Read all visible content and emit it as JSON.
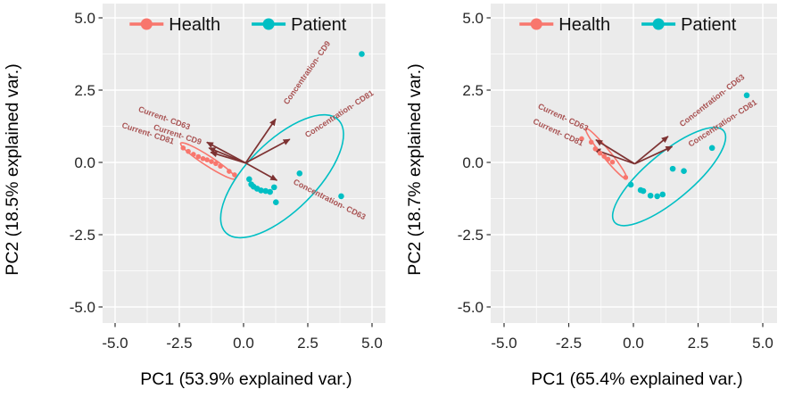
{
  "figure": {
    "background": "#ffffff"
  },
  "style": {
    "panel_bg": "#EBEBEB",
    "grid_color": "#FFFFFF",
    "tick_color": "#333333",
    "arrow_color": "#7d3232",
    "loading_label_color": "#a85252",
    "health_color": "#F8766D",
    "patient_color": "#00BFC4"
  },
  "legend": {
    "entries": [
      {
        "label": "Health",
        "color": "#F8766D"
      },
      {
        "label": "Patient",
        "color": "#00BFC4"
      }
    ]
  },
  "chart_data": [
    {
      "type": "scatter",
      "subtype": "pca-biplot",
      "xlabel": "PC1 (53.9% explained var.)",
      "ylabel": "PC2 (18.5% explained var.)",
      "xlim": [
        -5.5,
        5.5
      ],
      "ylim": [
        -5.5,
        5.5
      ],
      "xticks": [
        -5.0,
        -2.5,
        0.0,
        2.5,
        5.0
      ],
      "yticks": [
        -5.0,
        -2.5,
        0.0,
        2.5,
        5.0
      ],
      "tick_labels": [
        "-5.0",
        "-2.5",
        "0.0",
        "2.5",
        "5.0"
      ],
      "minor_ticks": [
        -3.75,
        -1.25,
        1.25,
        3.75
      ],
      "grid": {
        "major": true,
        "minor": true
      },
      "legend_position": "top-inside",
      "origin": [
        0.08,
        -0.02
      ],
      "series": [
        {
          "name": "Health",
          "color": "#F8766D",
          "points": [
            [
              -2.35,
              0.5
            ],
            [
              -2.15,
              0.38
            ],
            [
              -1.95,
              0.28
            ],
            [
              -1.76,
              0.2
            ],
            [
              -1.58,
              0.13
            ],
            [
              -1.42,
              0.09
            ],
            [
              -1.25,
              0.03
            ],
            [
              -1.08,
              -0.04
            ],
            [
              -0.9,
              -0.13
            ],
            [
              -0.56,
              -0.31
            ],
            [
              -0.35,
              -0.43
            ]
          ]
        },
        {
          "name": "Patient",
          "color": "#00BFC4",
          "points": [
            [
              0.22,
              -0.58
            ],
            [
              0.3,
              -0.76
            ],
            [
              0.39,
              -0.84
            ],
            [
              0.53,
              -0.91
            ],
            [
              0.68,
              -0.97
            ],
            [
              0.86,
              -0.99
            ],
            [
              1.03,
              -1.02
            ],
            [
              1.19,
              -0.86
            ],
            [
              1.26,
              -1.38
            ],
            [
              2.18,
              -0.38
            ],
            [
              3.8,
              -1.17
            ],
            [
              4.6,
              3.75
            ]
          ]
        }
      ],
      "ellipses": [
        {
          "group": "Health",
          "color": "#F8766D",
          "center": [
            -1.38,
            0.05
          ],
          "a": 1.27,
          "b": 0.19,
          "angle_deg": -33
        },
        {
          "group": "Patient",
          "color": "#00BFC4",
          "center": [
            1.5,
            -0.48
          ],
          "a": 3.1,
          "b": 1.35,
          "angle_deg": 45
        }
      ],
      "loadings": [
        {
          "label": "Concentration- CD9",
          "tip": [
            1.25,
            1.5
          ],
          "label_pos": [
            2.55,
            3.05
          ],
          "label_angle": -55
        },
        {
          "label": "Concentration- CD81",
          "tip": [
            1.8,
            0.8
          ],
          "label_pos": [
            3.78,
            1.6
          ],
          "label_angle": -33
        },
        {
          "label": "Concentration- CD63",
          "tip": [
            1.3,
            -0.62
          ],
          "label_pos": [
            3.3,
            -1.36
          ],
          "label_angle": 27
        },
        {
          "label": "Current- CD63",
          "tip": [
            -1.43,
            0.7
          ],
          "label_pos": [
            -3.12,
            1.45
          ],
          "label_angle": 20
        },
        {
          "label": "Current- CD81",
          "tip": [
            -1.35,
            0.5
          ],
          "label_pos": [
            -3.75,
            0.92
          ],
          "label_angle": 18
        },
        {
          "label": "Current- CD9",
          "tip": [
            -1.28,
            0.35
          ],
          "label_pos": [
            -2.6,
            0.88
          ],
          "label_angle": 18
        }
      ]
    },
    {
      "type": "scatter",
      "subtype": "pca-biplot",
      "xlabel": "PC1 (65.4% explained var.)",
      "ylabel": "PC2 (18.7% explained var.)",
      "xlim": [
        -5.5,
        5.5
      ],
      "ylim": [
        -5.5,
        5.5
      ],
      "xticks": [
        -5.0,
        -2.5,
        0.0,
        2.5,
        5.0
      ],
      "yticks": [
        -5.0,
        -2.5,
        0.0,
        2.5,
        5.0
      ],
      "tick_labels": [
        "-5.0",
        "-2.5",
        "0.0",
        "2.5",
        "5.0"
      ],
      "minor_ticks": [
        -3.75,
        -1.25,
        1.25,
        3.75
      ],
      "grid": {
        "major": true,
        "minor": true
      },
      "legend_position": "top-inside",
      "origin": [
        0.05,
        -0.05
      ],
      "series": [
        {
          "name": "Health",
          "color": "#F8766D",
          "points": [
            [
              -2.0,
              0.82
            ],
            [
              -1.63,
              0.7
            ],
            [
              -1.47,
              0.47
            ],
            [
              -1.29,
              0.32
            ],
            [
              -1.13,
              0.21
            ],
            [
              -0.98,
              0.11
            ],
            [
              -0.81,
              0.01
            ],
            [
              -0.3,
              -0.52
            ]
          ]
        },
        {
          "name": "Patient",
          "color": "#00BFC4",
          "points": [
            [
              -0.1,
              -0.77
            ],
            [
              0.28,
              -0.96
            ],
            [
              0.38,
              -0.99
            ],
            [
              0.66,
              -1.15
            ],
            [
              0.92,
              -1.17
            ],
            [
              1.13,
              -1.11
            ],
            [
              1.52,
              -0.22
            ],
            [
              1.95,
              -0.3
            ],
            [
              3.04,
              0.5
            ],
            [
              4.38,
              2.32
            ]
          ]
        }
      ],
      "ellipses": [
        {
          "group": "Health",
          "color": "#F8766D",
          "center": [
            -1.05,
            0.3
          ],
          "a": 1.25,
          "b": 0.16,
          "angle_deg": -51
        },
        {
          "group": "Patient",
          "color": "#00BFC4",
          "center": [
            1.38,
            -0.49
          ],
          "a": 2.75,
          "b": 0.9,
          "angle_deg": 40
        }
      ],
      "loadings": [
        {
          "label": "Current- CD63",
          "tip": [
            -1.45,
            0.78
          ],
          "label_pos": [
            -2.76,
            1.48
          ],
          "label_angle": 25
        },
        {
          "label": "Current- CD81",
          "tip": [
            -1.52,
            0.45
          ],
          "label_pos": [
            -2.95,
            0.96
          ],
          "label_angle": 25
        },
        {
          "label": "Concentration- CD63",
          "tip": [
            1.34,
            0.9
          ],
          "label_pos": [
            3.1,
            2.07
          ],
          "label_angle": -38
        },
        {
          "label": "Concentration- CD81",
          "tip": [
            1.5,
            0.55
          ],
          "label_pos": [
            3.5,
            1.28
          ],
          "label_angle": -33
        }
      ]
    }
  ]
}
